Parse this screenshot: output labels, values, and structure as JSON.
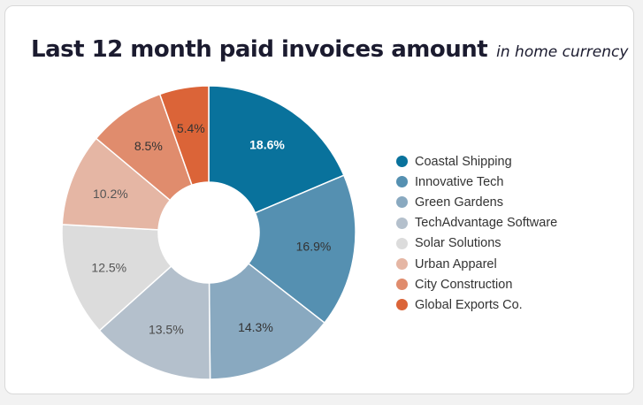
{
  "title": "Last 12 month paid invoices amount",
  "subtitle": "in home currency",
  "chart_data": {
    "type": "pie",
    "variant": "donut",
    "title": "Last 12 month paid invoices amount",
    "subtitle": "in home currency",
    "legend_position": "right",
    "categories": [
      "Coastal Shipping",
      "Innovative Tech",
      "Green Gardens",
      "TechAdvantage Software",
      "Solar Solutions",
      "Urban Apparel",
      "City Construction",
      "Global Exports Co."
    ],
    "values": [
      18.6,
      16.9,
      14.3,
      13.5,
      12.5,
      10.2,
      8.5,
      5.4
    ],
    "labels": [
      "18.6%",
      "16.9%",
      "14.3%",
      "13.5%",
      "12.5%",
      "10.2%",
      "8.5%",
      "5.4%"
    ],
    "colors": [
      "#09729c",
      "#5590b1",
      "#89a9c0",
      "#b4c0cc",
      "#dcdcdc",
      "#e5b6a4",
      "#e08c6d",
      "#db6438"
    ],
    "label_colors": [
      "#ffffff",
      "#333333",
      "#333333",
      "#4a4a4a",
      "#555555",
      "#555555",
      "#333333",
      "#333333"
    ]
  }
}
